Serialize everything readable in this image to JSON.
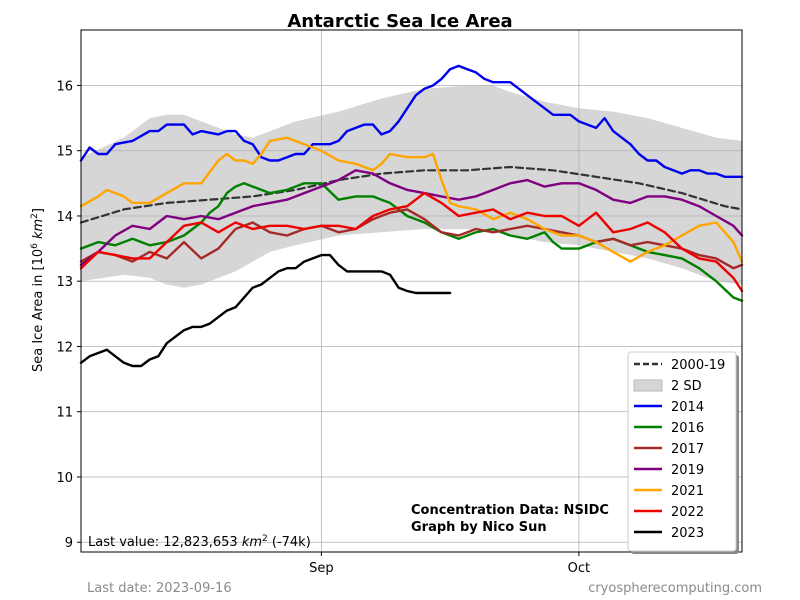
{
  "chart_data": {
    "type": "line",
    "title": "Antarctic Sea Ice Area",
    "ylabel_prefix": "Sea Ice Area in [10",
    "ylabel_sup": "6",
    "ylabel_unit": "km",
    "ylabel_unit_sup": "2",
    "ylabel_suffix": "]",
    "xlim": [
      0,
      77
    ],
    "ylim": [
      8.85,
      16.85
    ],
    "xticks": [
      {
        "x": 28,
        "label": "Sep"
      },
      {
        "x": 58,
        "label": "Oct"
      }
    ],
    "yticks": [
      9,
      10,
      11,
      12,
      13,
      14,
      15,
      16
    ],
    "grid": true,
    "legend_position": "lower right",
    "legend": [
      {
        "label": "2000-19",
        "style": "dashed",
        "color": "#333333"
      },
      {
        "label": "2 SD",
        "style": "band",
        "color": "#d6d6d6"
      },
      {
        "label": "2014",
        "style": "line",
        "color": "#0000ee"
      },
      {
        "label": "2016",
        "style": "line",
        "color": "#008000"
      },
      {
        "label": "2017",
        "style": "line",
        "color": "#a52a2a"
      },
      {
        "label": "2019",
        "style": "line",
        "color": "#800080"
      },
      {
        "label": "2021",
        "style": "line",
        "color": "#ffa500"
      },
      {
        "label": "2022",
        "style": "line",
        "color": "#ee0000"
      },
      {
        "label": "2023",
        "style": "line",
        "color": "#000000"
      }
    ],
    "band_x": [
      0,
      5,
      8,
      10,
      12,
      14,
      16,
      18,
      20,
      22,
      25,
      30,
      35,
      40,
      45,
      48,
      50,
      54,
      58,
      62,
      66,
      70,
      74,
      77
    ],
    "band_upper": [
      14.9,
      15.2,
      15.5,
      15.55,
      15.55,
      15.45,
      15.35,
      15.25,
      15.2,
      15.3,
      15.45,
      15.6,
      15.8,
      15.95,
      16.0,
      16.0,
      15.9,
      15.75,
      15.65,
      15.6,
      15.5,
      15.35,
      15.2,
      15.15
    ],
    "band_lower": [
      13.0,
      13.1,
      13.05,
      12.95,
      12.9,
      12.95,
      13.05,
      13.15,
      13.3,
      13.45,
      13.55,
      13.7,
      13.75,
      13.8,
      13.8,
      13.75,
      13.7,
      13.6,
      13.55,
      13.45,
      13.35,
      13.2,
      13.0,
      12.95
    ],
    "series": [
      {
        "name": "2000-19",
        "x": [
          0,
          5,
          10,
          15,
          20,
          25,
          30,
          35,
          40,
          45,
          50,
          55,
          60,
          65,
          70,
          75,
          77
        ],
        "values": [
          13.9,
          14.1,
          14.2,
          14.25,
          14.3,
          14.4,
          14.55,
          14.65,
          14.7,
          14.7,
          14.75,
          14.7,
          14.6,
          14.5,
          14.35,
          14.15,
          14.1
        ]
      },
      {
        "name": "2014",
        "x": [
          0,
          1,
          2,
          3,
          4,
          6,
          8,
          9,
          10,
          12,
          13,
          14,
          16,
          17,
          18,
          19,
          20,
          21,
          22,
          23,
          24,
          25,
          26,
          27,
          28,
          29,
          30,
          31,
          32,
          33,
          34,
          35,
          36,
          37,
          38,
          39,
          40,
          41,
          42,
          43,
          44,
          45,
          46,
          47,
          48,
          49,
          50,
          51,
          52,
          53,
          54,
          55,
          56,
          57,
          58,
          59,
          60,
          61,
          62,
          63,
          64,
          65,
          66,
          67,
          68,
          69,
          70,
          71,
          72,
          73,
          74,
          75,
          76,
          77
        ],
        "values": [
          14.85,
          15.05,
          14.95,
          14.95,
          15.1,
          15.15,
          15.3,
          15.3,
          15.4,
          15.4,
          15.25,
          15.3,
          15.25,
          15.3,
          15.3,
          15.15,
          15.1,
          14.9,
          14.85,
          14.85,
          14.9,
          14.95,
          14.95,
          15.1,
          15.1,
          15.1,
          15.15,
          15.3,
          15.35,
          15.4,
          15.4,
          15.25,
          15.3,
          15.45,
          15.65,
          15.85,
          15.95,
          16.0,
          16.1,
          16.25,
          16.3,
          16.25,
          16.2,
          16.1,
          16.05,
          16.05,
          16.05,
          15.95,
          15.85,
          15.75,
          15.65,
          15.55,
          15.55,
          15.55,
          15.45,
          15.4,
          15.35,
          15.5,
          15.3,
          15.2,
          15.1,
          14.95,
          14.85,
          14.85,
          14.75,
          14.7,
          14.65,
          14.7,
          14.7,
          14.65,
          14.65,
          14.6,
          14.6,
          14.6
        ]
      },
      {
        "name": "2016",
        "x": [
          0,
          2,
          4,
          6,
          8,
          10,
          12,
          14,
          15,
          16,
          17,
          18,
          19,
          20,
          22,
          24,
          26,
          28,
          30,
          32,
          34,
          35,
          36,
          37,
          38,
          40,
          42,
          44,
          46,
          48,
          50,
          52,
          54,
          55,
          56,
          58,
          60,
          62,
          64,
          66,
          68,
          70,
          72,
          74,
          76,
          77
        ],
        "values": [
          13.5,
          13.6,
          13.55,
          13.65,
          13.55,
          13.6,
          13.7,
          13.9,
          14.05,
          14.15,
          14.35,
          14.45,
          14.5,
          14.45,
          14.35,
          14.4,
          14.5,
          14.5,
          14.25,
          14.3,
          14.3,
          14.25,
          14.2,
          14.1,
          14.0,
          13.9,
          13.75,
          13.65,
          13.75,
          13.8,
          13.7,
          13.65,
          13.75,
          13.6,
          13.5,
          13.5,
          13.6,
          13.65,
          13.55,
          13.45,
          13.4,
          13.35,
          13.2,
          13.0,
          12.75,
          12.7
        ]
      },
      {
        "name": "2017",
        "x": [
          0,
          2,
          4,
          6,
          8,
          10,
          12,
          14,
          16,
          18,
          20,
          22,
          24,
          26,
          28,
          30,
          32,
          34,
          36,
          38,
          40,
          42,
          44,
          46,
          48,
          50,
          52,
          54,
          56,
          58,
          60,
          62,
          64,
          66,
          68,
          70,
          72,
          74,
          76,
          77
        ],
        "values": [
          13.3,
          13.45,
          13.4,
          13.3,
          13.45,
          13.35,
          13.6,
          13.35,
          13.5,
          13.8,
          13.9,
          13.75,
          13.7,
          13.8,
          13.85,
          13.75,
          13.8,
          13.95,
          14.05,
          14.1,
          13.95,
          13.75,
          13.7,
          13.8,
          13.75,
          13.8,
          13.85,
          13.8,
          13.75,
          13.7,
          13.6,
          13.65,
          13.55,
          13.6,
          13.55,
          13.5,
          13.4,
          13.35,
          13.2,
          13.25
        ]
      },
      {
        "name": "2019",
        "x": [
          0,
          2,
          4,
          6,
          8,
          10,
          12,
          14,
          16,
          18,
          20,
          22,
          24,
          26,
          28,
          30,
          32,
          34,
          36,
          38,
          40,
          42,
          44,
          46,
          48,
          50,
          52,
          54,
          56,
          58,
          60,
          62,
          64,
          66,
          68,
          70,
          72,
          74,
          76,
          77
        ],
        "values": [
          13.25,
          13.45,
          13.7,
          13.85,
          13.8,
          14.0,
          13.95,
          14.0,
          13.95,
          14.05,
          14.15,
          14.2,
          14.25,
          14.35,
          14.45,
          14.55,
          14.7,
          14.65,
          14.5,
          14.4,
          14.35,
          14.3,
          14.25,
          14.3,
          14.4,
          14.5,
          14.55,
          14.45,
          14.5,
          14.5,
          14.4,
          14.25,
          14.2,
          14.3,
          14.3,
          14.25,
          14.15,
          14.0,
          13.85,
          13.7
        ]
      },
      {
        "name": "2021",
        "x": [
          0,
          2,
          3,
          4,
          5,
          6,
          8,
          10,
          12,
          14,
          16,
          17,
          18,
          19,
          20,
          21,
          22,
          24,
          26,
          28,
          30,
          32,
          34,
          35,
          36,
          38,
          40,
          41,
          42,
          43,
          44,
          46,
          48,
          50,
          52,
          54,
          56,
          58,
          60,
          62,
          64,
          66,
          68,
          70,
          72,
          74,
          76,
          77
        ],
        "values": [
          14.15,
          14.3,
          14.4,
          14.35,
          14.3,
          14.2,
          14.2,
          14.35,
          14.5,
          14.5,
          14.85,
          14.95,
          14.85,
          14.85,
          14.8,
          14.95,
          15.15,
          15.2,
          15.1,
          15.0,
          14.85,
          14.8,
          14.7,
          14.8,
          14.95,
          14.9,
          14.9,
          14.95,
          14.55,
          14.2,
          14.15,
          14.1,
          13.95,
          14.05,
          13.95,
          13.8,
          13.7,
          13.7,
          13.6,
          13.45,
          13.3,
          13.45,
          13.55,
          13.7,
          13.85,
          13.9,
          13.6,
          13.3
        ]
      },
      {
        "name": "2022",
        "x": [
          0,
          2,
          4,
          6,
          8,
          10,
          12,
          14,
          16,
          18,
          20,
          22,
          24,
          26,
          28,
          30,
          32,
          34,
          36,
          38,
          40,
          42,
          44,
          46,
          48,
          50,
          52,
          54,
          56,
          58,
          60,
          62,
          64,
          66,
          68,
          70,
          72,
          74,
          76,
          77
        ],
        "values": [
          13.2,
          13.45,
          13.4,
          13.35,
          13.35,
          13.6,
          13.85,
          13.9,
          13.75,
          13.9,
          13.8,
          13.85,
          13.85,
          13.8,
          13.85,
          13.85,
          13.8,
          14.0,
          14.1,
          14.15,
          14.35,
          14.2,
          14.0,
          14.05,
          14.1,
          13.95,
          14.05,
          14.0,
          14.0,
          13.85,
          14.05,
          13.75,
          13.8,
          13.9,
          13.75,
          13.5,
          13.35,
          13.3,
          13.05,
          12.85
        ]
      },
      {
        "name": "2023",
        "x": [
          0,
          1,
          2,
          3,
          4,
          5,
          6,
          7,
          8,
          9,
          10,
          11,
          12,
          13,
          14,
          15,
          16,
          17,
          18,
          19,
          20,
          21,
          22,
          23,
          24,
          25,
          26,
          27,
          28,
          29,
          30,
          31,
          32,
          33,
          34,
          35,
          36,
          37,
          38,
          39,
          40,
          41,
          42,
          43
        ],
        "values": [
          11.75,
          11.85,
          11.9,
          11.95,
          11.85,
          11.75,
          11.7,
          11.7,
          11.8,
          11.85,
          12.05,
          12.15,
          12.25,
          12.3,
          12.3,
          12.35,
          12.45,
          12.55,
          12.6,
          12.75,
          12.9,
          12.95,
          13.05,
          13.15,
          13.2,
          13.2,
          13.3,
          13.35,
          13.4,
          13.4,
          13.25,
          13.15,
          13.15,
          13.15,
          13.15,
          13.15,
          13.1,
          12.9,
          12.85,
          12.82,
          12.82,
          12.82,
          12.82,
          12.82
        ]
      }
    ],
    "annotation_source": "Concentration Data: NSIDC",
    "annotation_author": "Graph by Nico Sun",
    "last_value_prefix": "Last value: 12,823,653 ",
    "last_value_unit": "km",
    "last_value_unit_sup": "2",
    "last_value_suffix": " (-74k)"
  },
  "footer": {
    "last_date": "Last date: 2023-09-16",
    "site": "cryospherecomputing.com"
  }
}
